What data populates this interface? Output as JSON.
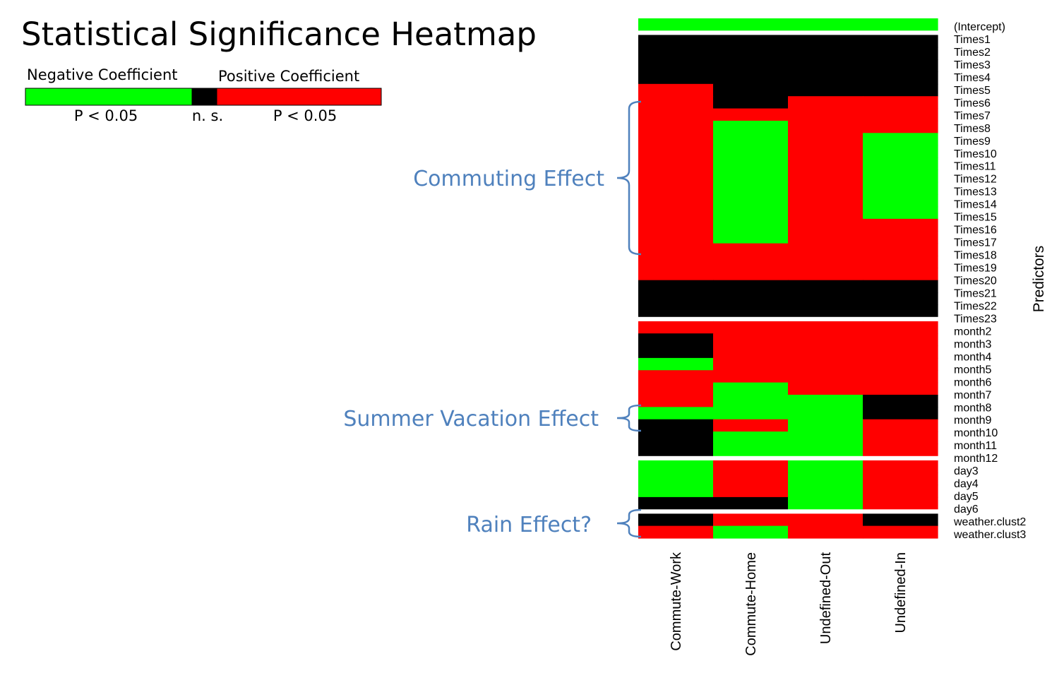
{
  "chart_data": {
    "type": "heatmap",
    "title": "Statistical Significance Heatmap",
    "ylabel": "Predictors",
    "legend": {
      "labels": [
        "Negative Coefficient",
        "Positive Coefficient"
      ],
      "ticks": [
        "P < 0.05",
        "n. s.",
        "P < 0.05"
      ],
      "colors": {
        "negative": "#00ff00",
        "ns": "#000000",
        "positive": "#ff0000"
      }
    },
    "columns": [
      "Commute-Work",
      "Commute-Home",
      "Undefined-Out",
      "Undefined-In"
    ],
    "rows": [
      "(Intercept)",
      "Times1",
      "Times2",
      "Times3",
      "Times4",
      "Times5",
      "Times6",
      "Times7",
      "Times8",
      "Times9",
      "Times10",
      "Times11",
      "Times12",
      "Times13",
      "Times14",
      "Times15",
      "Times16",
      "Times17",
      "Times18",
      "Times19",
      "Times20",
      "Times21",
      "Times22",
      "Times23",
      "month2",
      "month3",
      "month4",
      "month5",
      "month6",
      "month7",
      "month8",
      "month9",
      "month10",
      "month11",
      "month12",
      "day3",
      "day4",
      "day5",
      "day6",
      "weather.clust2",
      "weather.clust3"
    ],
    "groups": [
      {
        "name": "intercept",
        "rows": [
          "(Intercept)"
        ]
      },
      {
        "name": "times",
        "rows": [
          "Times1",
          "Times2",
          "Times3",
          "Times4",
          "Times5",
          "Times6",
          "Times7",
          "Times8",
          "Times9",
          "Times10",
          "Times11",
          "Times12",
          "Times13",
          "Times14",
          "Times15",
          "Times16",
          "Times17",
          "Times18",
          "Times19",
          "Times20",
          "Times21",
          "Times22",
          "Times23"
        ]
      },
      {
        "name": "month",
        "rows": [
          "month2",
          "month3",
          "month4",
          "month5",
          "month6",
          "month7",
          "month8",
          "month9",
          "month10",
          "month11",
          "month12"
        ]
      },
      {
        "name": "day",
        "rows": [
          "day3",
          "day4",
          "day5",
          "day6"
        ]
      },
      {
        "name": "weather",
        "rows": [
          "weather.clust2",
          "weather.clust3"
        ]
      }
    ],
    "value_key": {
      "-1": "Negative Coefficient (P < 0.05)",
      "0": "n. s.",
      "1": "Positive Coefficient (P < 0.05)"
    },
    "values": [
      [
        -1,
        -1,
        -1,
        -1
      ],
      [
        0,
        0,
        0,
        0
      ],
      [
        0,
        0,
        0,
        0
      ],
      [
        0,
        0,
        0,
        0
      ],
      [
        0,
        0,
        0,
        0
      ],
      [
        1,
        0,
        0,
        0
      ],
      [
        1,
        0,
        1,
        1
      ],
      [
        1,
        1,
        1,
        1
      ],
      [
        1,
        -1,
        1,
        1
      ],
      [
        1,
        -1,
        1,
        -1
      ],
      [
        1,
        -1,
        1,
        -1
      ],
      [
        1,
        -1,
        1,
        -1
      ],
      [
        1,
        -1,
        1,
        -1
      ],
      [
        1,
        -1,
        1,
        -1
      ],
      [
        1,
        -1,
        1,
        -1
      ],
      [
        1,
        -1,
        1,
        -1
      ],
      [
        1,
        -1,
        1,
        1
      ],
      [
        1,
        -1,
        1,
        1
      ],
      [
        1,
        1,
        1,
        1
      ],
      [
        1,
        1,
        1,
        1
      ],
      [
        1,
        1,
        1,
        1
      ],
      [
        0,
        0,
        0,
        0
      ],
      [
        0,
        0,
        0,
        0
      ],
      [
        0,
        0,
        0,
        0
      ],
      [
        1,
        1,
        1,
        1
      ],
      [
        0,
        1,
        1,
        1
      ],
      [
        0,
        1,
        1,
        1
      ],
      [
        -1,
        1,
        1,
        1
      ],
      [
        1,
        1,
        1,
        1
      ],
      [
        1,
        -1,
        1,
        1
      ],
      [
        1,
        -1,
        -1,
        0
      ],
      [
        -1,
        -1,
        -1,
        0
      ],
      [
        0,
        1,
        -1,
        1
      ],
      [
        0,
        -1,
        -1,
        1
      ],
      [
        0,
        -1,
        -1,
        1
      ],
      [
        -1,
        1,
        -1,
        1
      ],
      [
        -1,
        1,
        -1,
        1
      ],
      [
        -1,
        1,
        -1,
        1
      ],
      [
        0,
        0,
        -1,
        1
      ],
      [
        0,
        1,
        1,
        0
      ],
      [
        1,
        -1,
        1,
        1
      ]
    ],
    "annotations": [
      {
        "text": "Commuting Effect",
        "first_row": "Times6",
        "last_row": "Times18"
      },
      {
        "text": "Summer Vacation Effect",
        "first_row": "month8",
        "last_row": "month9"
      },
      {
        "text": "Rain Effect?",
        "first_row": "weather.clust2",
        "last_row": "weather.clust3"
      }
    ]
  }
}
